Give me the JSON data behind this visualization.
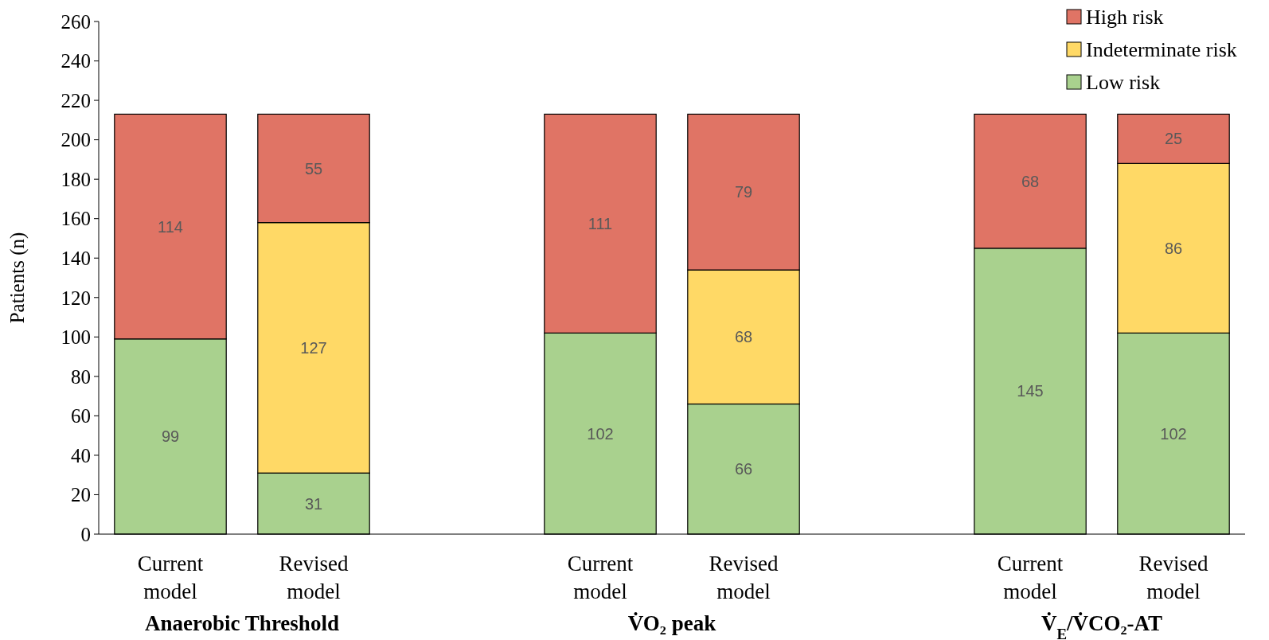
{
  "chart_data": {
    "type": "bar",
    "stacked": true,
    "ylabel": "Patients (n)",
    "categories": [
      "Current model",
      "Revised model",
      null,
      "Current model",
      "Revised model",
      null,
      "Current model",
      "Revised model"
    ],
    "series": [
      {
        "name": "Low risk",
        "color": "#a9d18e",
        "values": [
          99,
          31,
          null,
          102,
          66,
          null,
          145,
          102
        ]
      },
      {
        "name": "Indeterminate risk",
        "color": "#ffd966",
        "values": [
          null,
          127,
          null,
          null,
          68,
          null,
          null,
          86
        ]
      },
      {
        "name": "High risk",
        "color": "#e07465",
        "values": [
          114,
          55,
          null,
          111,
          79,
          null,
          68,
          25
        ]
      }
    ],
    "ylim": [
      0,
      260
    ],
    "yticks": [
      0,
      20,
      40,
      60,
      80,
      100,
      120,
      140,
      160,
      180,
      200,
      220,
      240,
      260
    ],
    "data_labels": true,
    "legend": "top right",
    "grid": false,
    "annotations": [
      "Anaerobic Threshold",
      "V̇O₂ peak",
      "V̇$_{E}$/V̇CO₂-AT"
    ]
  }
}
